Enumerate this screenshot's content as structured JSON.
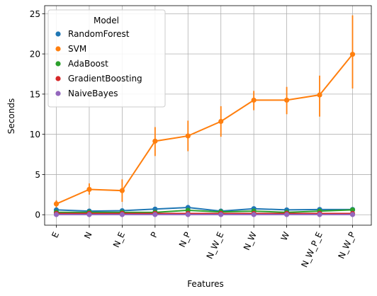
{
  "chart_data": {
    "type": "line",
    "xlabel": "Features",
    "ylabel": "Seconds",
    "categories": [
      "E",
      "N",
      "N_E",
      "P",
      "N_P",
      "N_W_E",
      "N_W",
      "W",
      "N_W_P_E",
      "N_W_P"
    ],
    "yticks": [
      0,
      5,
      10,
      15,
      20,
      25
    ],
    "ytick_labels": [
      "0",
      "5",
      "10",
      "15",
      "20",
      "25"
    ],
    "ylim": [
      -1.3,
      26
    ],
    "grid": true,
    "legend": {
      "title": "Model",
      "placement": "top-left"
    },
    "series": [
      {
        "name": "RandomForest",
        "color": "#1f77b4",
        "values": [
          0.6,
          0.45,
          0.5,
          0.7,
          0.9,
          0.45,
          0.75,
          0.6,
          0.65,
          0.65
        ],
        "err_low": [
          0.4,
          0.35,
          0.35,
          0.5,
          0.7,
          0.3,
          0.6,
          0.45,
          0.5,
          0.5
        ],
        "err_high": [
          0.8,
          0.55,
          0.65,
          0.9,
          1.1,
          0.6,
          0.9,
          0.75,
          0.8,
          0.8
        ]
      },
      {
        "name": "SVM",
        "color": "#ff7f0e",
        "values": [
          1.35,
          3.15,
          3.0,
          9.15,
          9.8,
          11.6,
          14.25,
          14.25,
          14.9,
          19.95
        ],
        "err_low": [
          0.9,
          2.5,
          1.6,
          7.3,
          7.9,
          9.7,
          13.0,
          12.5,
          12.2,
          15.7
        ],
        "err_high": [
          1.8,
          3.9,
          4.4,
          10.9,
          11.7,
          13.5,
          15.4,
          15.9,
          17.3,
          24.8
        ]
      },
      {
        "name": "AdaBoost",
        "color": "#2ca02c",
        "values": [
          0.3,
          0.3,
          0.3,
          0.3,
          0.55,
          0.35,
          0.45,
          0.3,
          0.45,
          0.6
        ],
        "err_low": [
          0.2,
          0.2,
          0.2,
          0.2,
          0.4,
          0.25,
          0.35,
          0.2,
          0.35,
          0.45
        ],
        "err_high": [
          0.4,
          0.4,
          0.4,
          0.4,
          0.7,
          0.45,
          0.55,
          0.4,
          0.55,
          0.75
        ]
      },
      {
        "name": "GradientBoosting",
        "color": "#d62728",
        "values": [
          0.15,
          0.15,
          0.15,
          0.15,
          0.15,
          0.15,
          0.15,
          0.15,
          0.15,
          0.15
        ],
        "err_low": [
          0.1,
          0.1,
          0.1,
          0.1,
          0.1,
          0.1,
          0.1,
          0.1,
          0.1,
          0.1
        ],
        "err_high": [
          0.2,
          0.2,
          0.2,
          0.2,
          0.2,
          0.2,
          0.2,
          0.2,
          0.2,
          0.2
        ]
      },
      {
        "name": "NaiveBayes",
        "color": "#9467bd",
        "values": [
          0.02,
          0.02,
          0.02,
          0.02,
          0.02,
          0.02,
          0.02,
          0.02,
          0.02,
          0.02
        ],
        "err_low": [
          0.0,
          0.0,
          0.0,
          0.0,
          0.0,
          0.0,
          0.0,
          0.0,
          0.0,
          0.0
        ],
        "err_high": [
          0.04,
          0.04,
          0.04,
          0.04,
          0.04,
          0.04,
          0.04,
          0.04,
          0.04,
          0.04
        ]
      }
    ]
  }
}
